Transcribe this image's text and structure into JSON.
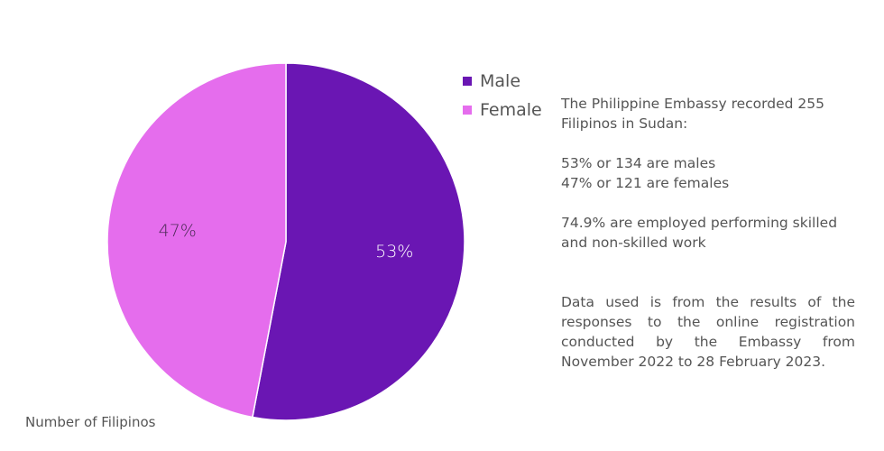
{
  "colors": {
    "male": "#6a16b3",
    "female": "#e56ded",
    "text": "#555555"
  },
  "chart_data": {
    "type": "pie",
    "title": "",
    "categories": [
      "Male",
      "Female"
    ],
    "values": [
      53,
      47
    ],
    "labels": [
      "53%",
      "47%"
    ],
    "colors": [
      "#6a16b3",
      "#e56ded"
    ],
    "legend_position": "right",
    "caption": "Number of Filipinos"
  },
  "notes": {
    "line1": "The Philippine Embassy recorded 255 Filipinos in Sudan:",
    "line2": "53% or 134 are males",
    "line3": "47% or 121 are females",
    "line4": "74.9% are employed performing skilled and non-skilled work",
    "line5": "Data used is from the results of the responses to the online registration conducted by the Embassy from November 2022 to 28 February 2023."
  }
}
